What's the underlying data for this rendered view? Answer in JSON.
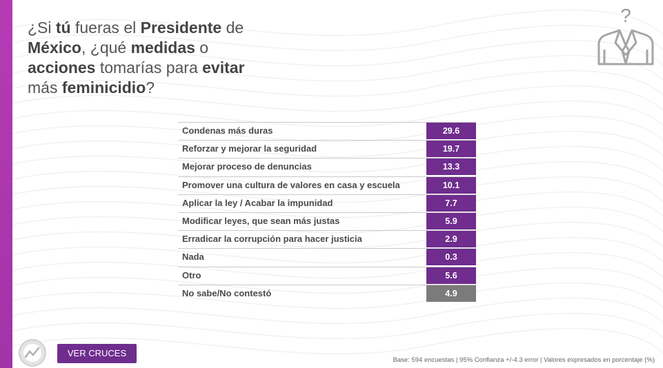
{
  "question": {
    "parts": [
      {
        "text": "¿Si ",
        "bold": false
      },
      {
        "text": "tú",
        "bold": true
      },
      {
        "text": " fueras el ",
        "bold": false
      },
      {
        "text": "Presidente",
        "bold": true
      },
      {
        "text": " de ",
        "bold": false
      },
      {
        "text": "México",
        "bold": true
      },
      {
        "text": ", ¿qué ",
        "bold": false
      },
      {
        "text": "medidas",
        "bold": true
      },
      {
        "text": " o ",
        "bold": false
      },
      {
        "text": "acciones",
        "bold": true
      },
      {
        "text": " tomarías para ",
        "bold": false
      },
      {
        "text": "evitar",
        "bold": true
      },
      {
        "text": " más ",
        "bold": false
      },
      {
        "text": "feminicidio",
        "bold": true
      },
      {
        "text": "?",
        "bold": false
      }
    ]
  },
  "emblem": {
    "icon": "question-suit-icon",
    "glyph": "?"
  },
  "results": [
    {
      "label": "Condenas más duras",
      "value": "29.6"
    },
    {
      "label": "Reforzar y mejorar la seguridad",
      "value": "19.7"
    },
    {
      "label": "Mejorar proceso de denuncias",
      "value": "13.3"
    },
    {
      "label": "Promover una cultura de valores en casa y escuela",
      "value": "10.1"
    },
    {
      "label": "Aplicar la ley / Acabar la impunidad",
      "value": "7.7"
    },
    {
      "label": "Modificar leyes, que sean más justas",
      "value": "5.9"
    },
    {
      "label": "Erradicar la corrupción para hacer justicia",
      "value": "2.9"
    },
    {
      "label": "Nada",
      "value": "0.3"
    },
    {
      "label": "Otro",
      "value": "5.6"
    },
    {
      "label": "No sabe/No contestó",
      "value": "4.9",
      "style": "gray"
    }
  ],
  "colors": {
    "accent": "#6f2d8e",
    "gray_cell": "#7b7b7b",
    "left_bar": "#b53bb5"
  },
  "button": {
    "label": "VER CRUCES"
  },
  "logo": {
    "icon": "brand-logo-icon"
  },
  "footnote": "Base: 594 encuestas  |  95% Confianza +/-4.3 error  |  Valores expresados en porcentaje (%)"
}
